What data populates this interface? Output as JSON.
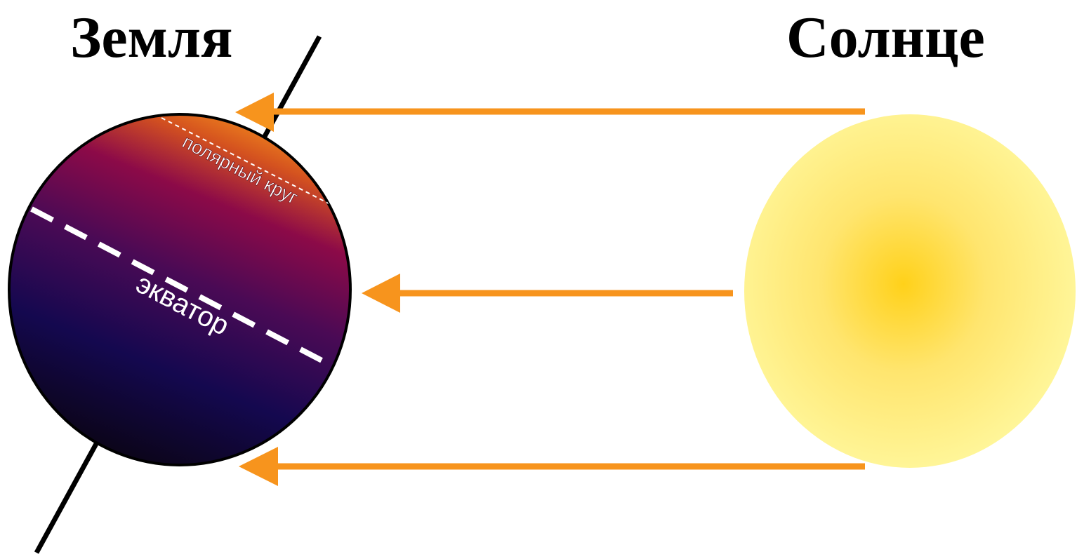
{
  "earth": {
    "title": "Земля",
    "equator_label": "экватор",
    "polar_circle_label": "полярный круг"
  },
  "sun": {
    "title": "Солнце"
  },
  "colors": {
    "ray": "#f7941d",
    "sun_core": "#ffd11a",
    "sun_edge": "#fff79c",
    "earth_lit": "#ffa21a",
    "earth_mid": "#8c0a48",
    "earth_dark": "#14084f",
    "axis": "#000000"
  }
}
